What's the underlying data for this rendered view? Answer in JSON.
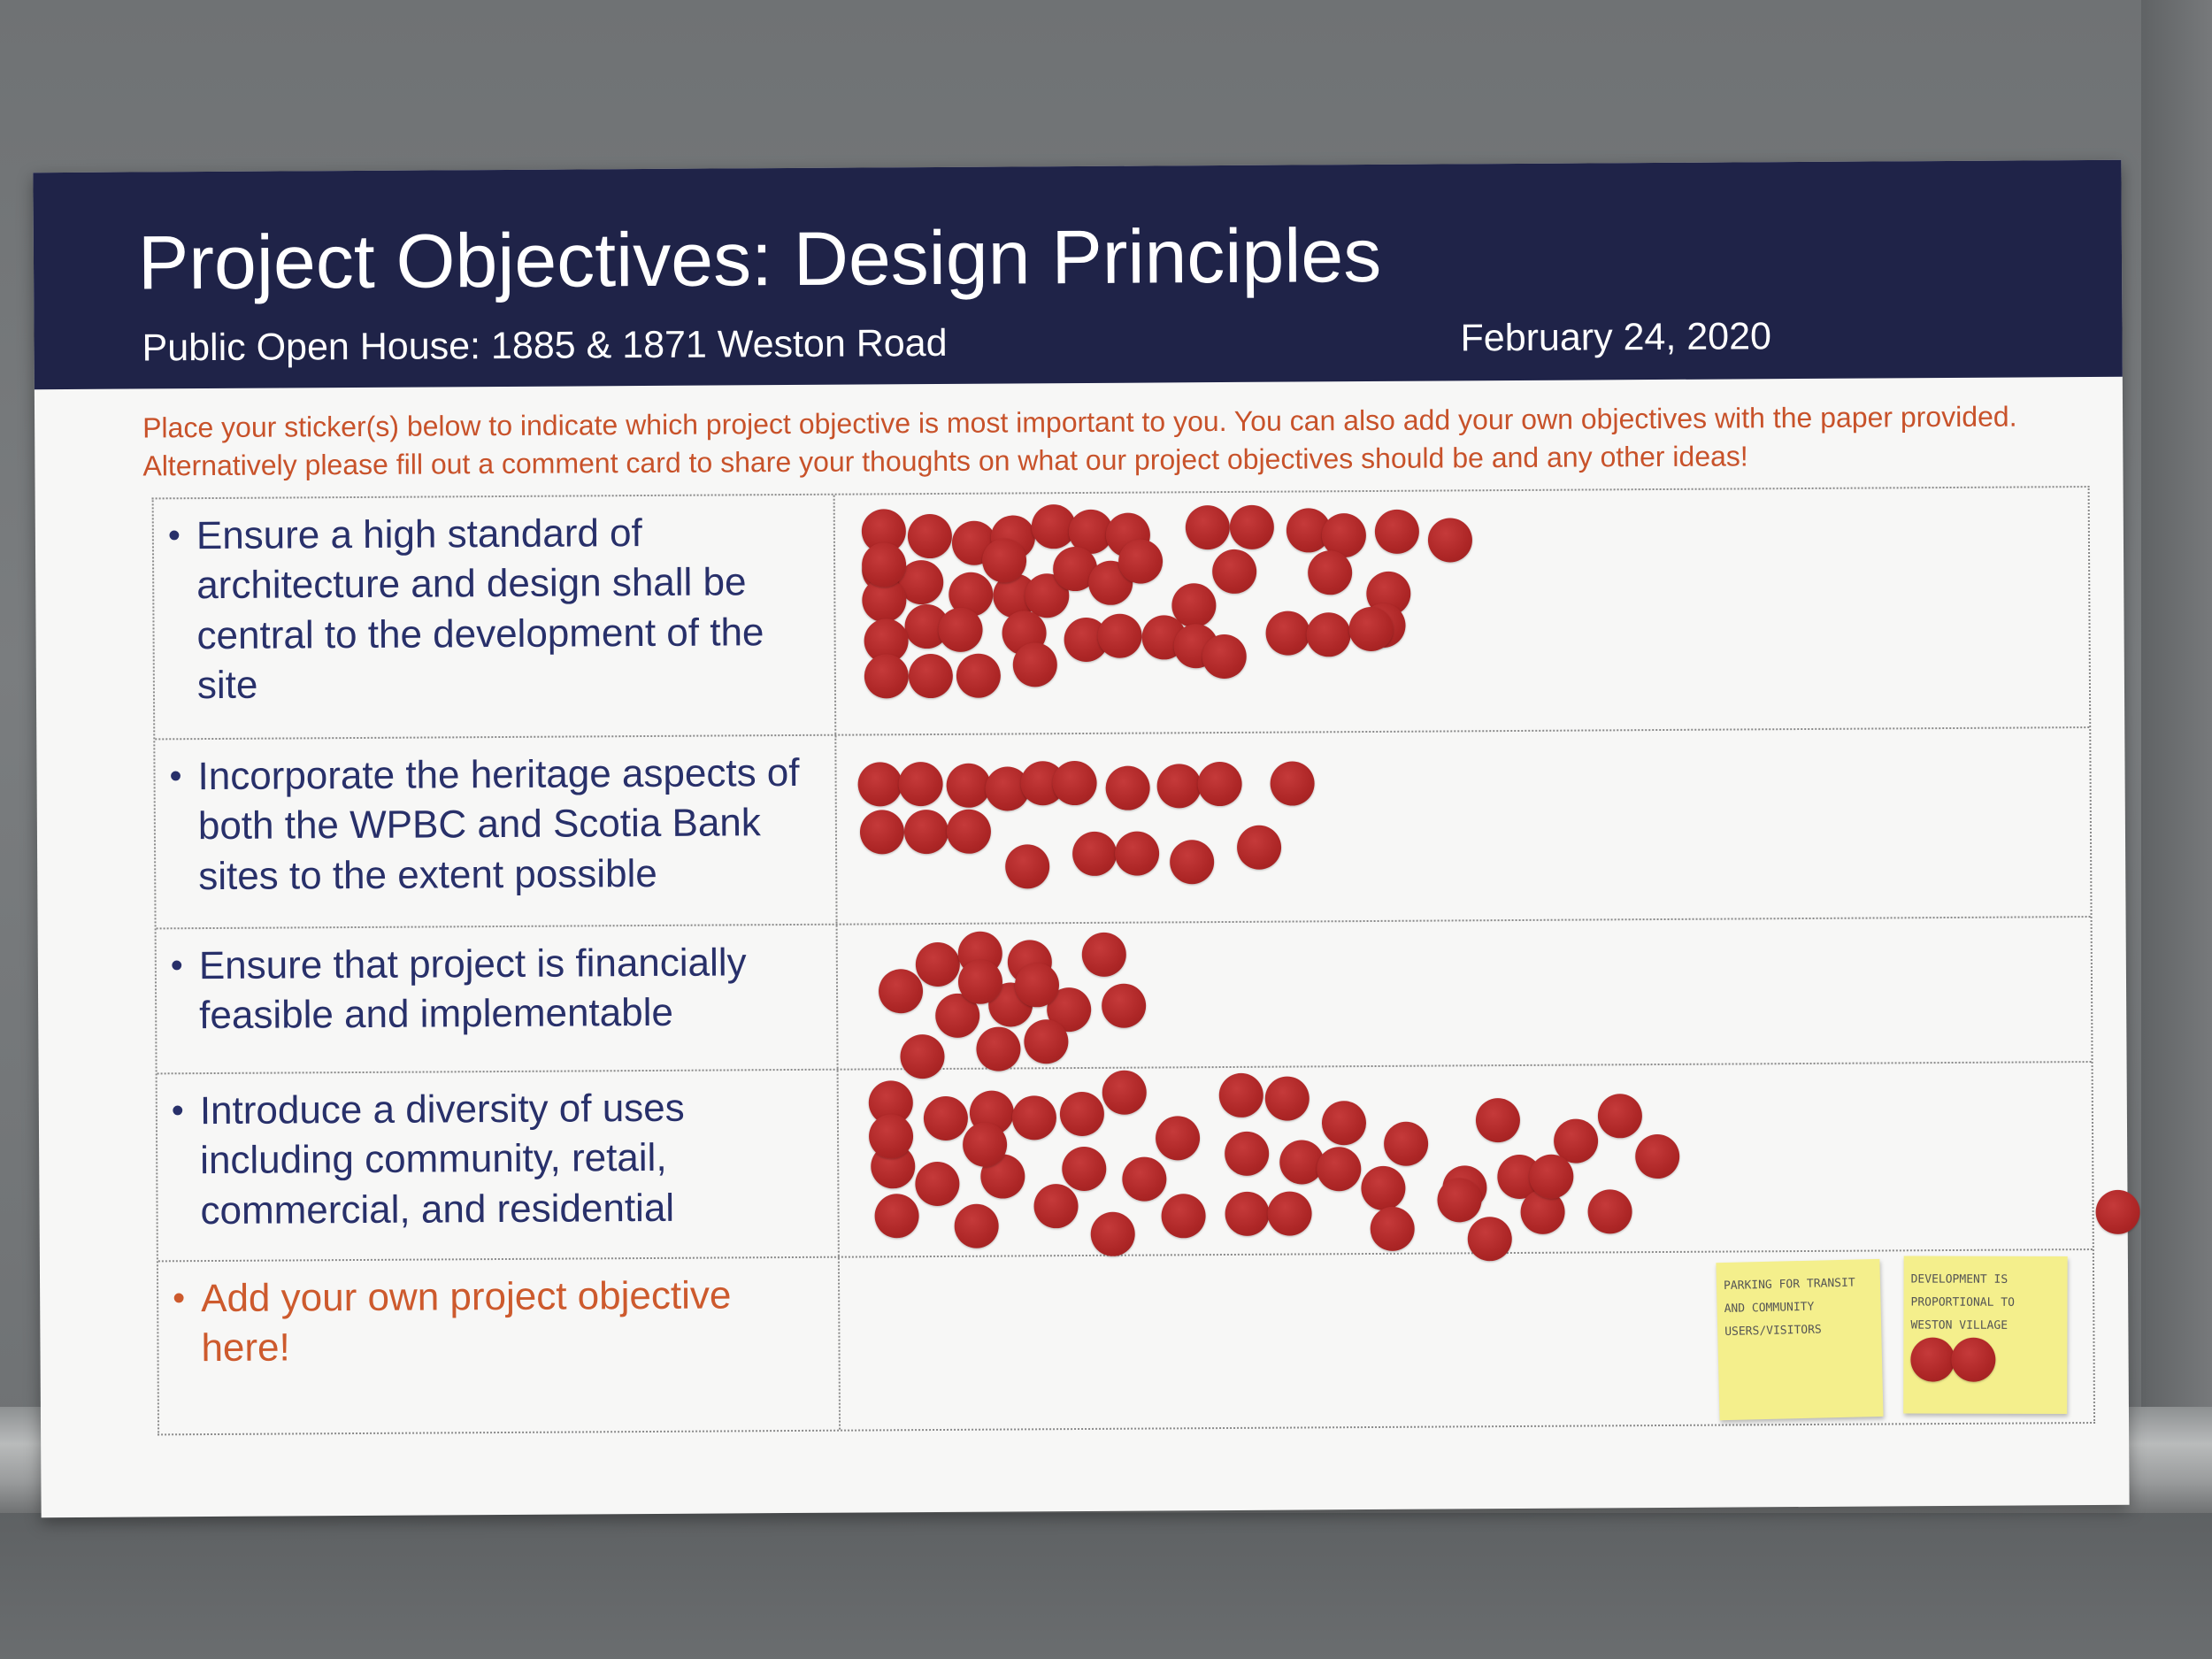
{
  "poster": {
    "title": "Project Objectives: Design Principles",
    "subtitle": "Public Open House: 1885 & 1871 Weston Road",
    "date": "February 24, 2020",
    "instructions": "Place your sticker(s) below to indicate which project objective is most important to you. You can also add your own objectives with the paper provided. Alternatively please fill out a comment card to share your thoughts on what our project objectives should be and any other ideas!",
    "header_color": "#1f2348",
    "text_color": "#28306a",
    "accent_color": "#cd5a2d",
    "sticker_color": "#ad2626"
  },
  "objectives": [
    {
      "bullet": "•",
      "label": "Ensure a high standard of architecture and design shall be central to the development of the site",
      "sticker_count": 45
    },
    {
      "bullet": "•",
      "label": "Incorporate the heritage aspects of both the WPBC and Scotia Bank sites to the extent possible",
      "sticker_count": 18
    },
    {
      "bullet": "•",
      "label": "Ensure that project is financially feasible and implementable",
      "sticker_count": 14
    },
    {
      "bullet": "•",
      "label": "Introduce a diversity of uses including community, retail, commercial, and residential",
      "sticker_count": 42
    },
    {
      "bullet": "•",
      "label": "Add your own project objective here!",
      "sticker_count": 0
    }
  ],
  "sticky_notes": [
    {
      "text": "Parking for transit and community users/visitors",
      "sticker_count": 0
    },
    {
      "text": "Development is proportional to Weston Village",
      "sticker_count": 2
    }
  ]
}
